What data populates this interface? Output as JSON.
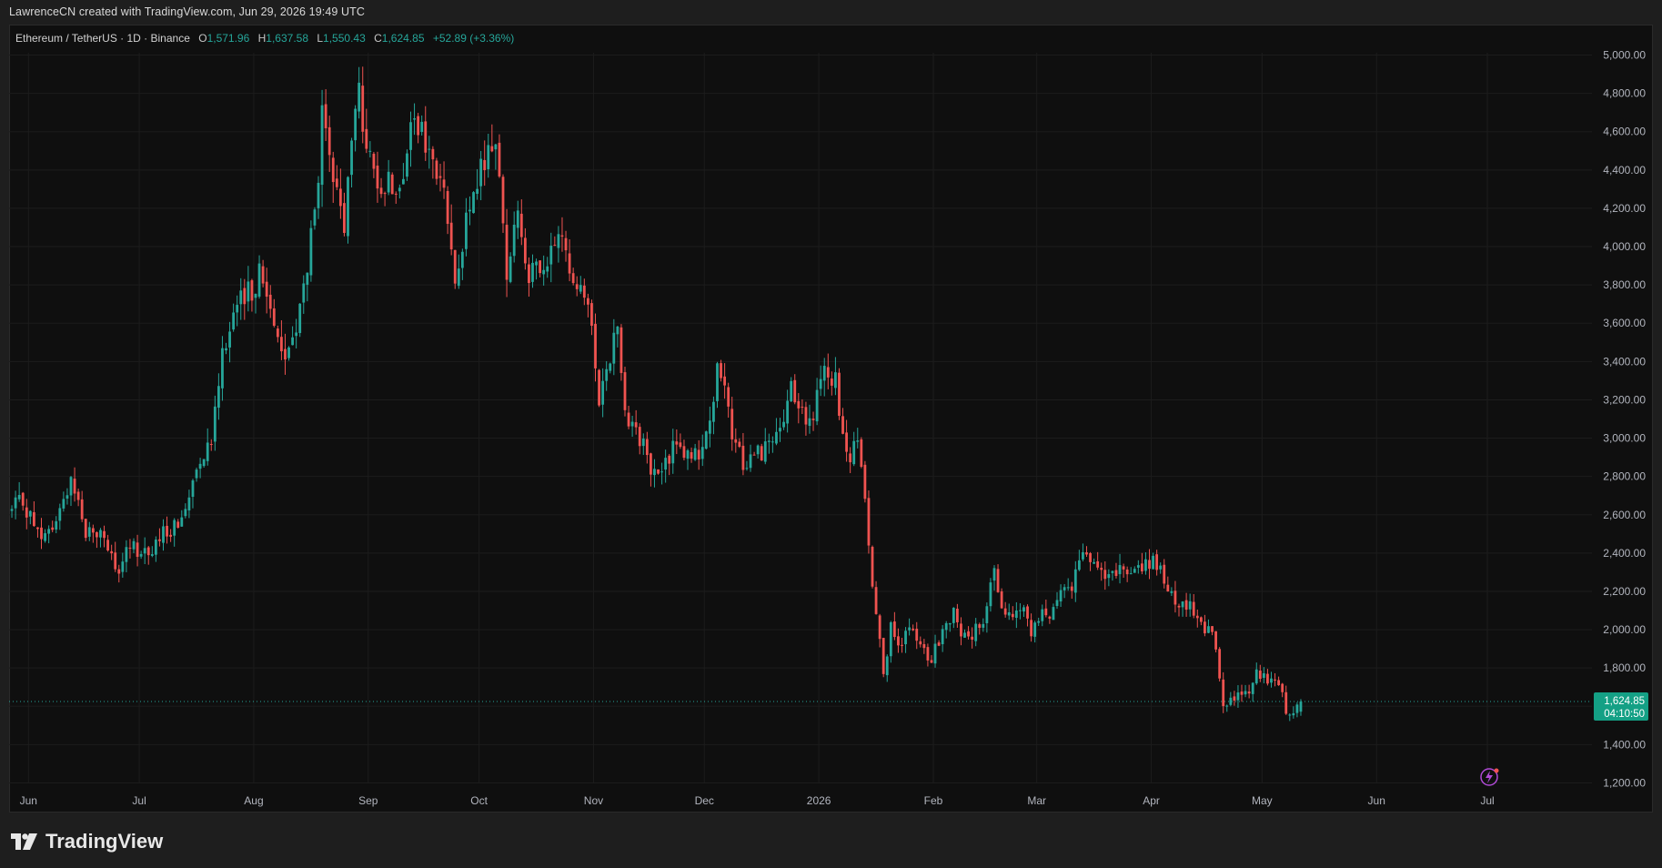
{
  "attribution": "LawrenceCN created with TradingView.com, Jun 29, 2026 19:49 UTC",
  "legend": {
    "symbol": "Ethereum / TetherUS · 1D · Binance",
    "open_label": "O",
    "open": "1,571.96",
    "high_label": "H",
    "high": "1,637.58",
    "low_label": "L",
    "low": "1,550.43",
    "close_label": "C",
    "close": "1,624.85",
    "change": "+52.89 (+3.36%)"
  },
  "price_tag": {
    "price": "1,624.85",
    "countdown": "04:10:50"
  },
  "logo_text": "TradingView",
  "colors": {
    "up": "#26a69a",
    "down": "#ef5350",
    "background": "#0f0f0f",
    "grid": "#1c1c1c",
    "axis_text": "#b2b5be",
    "tag": "#14a085"
  },
  "chart_data": {
    "type": "candlestick",
    "title": "Ethereum / TetherUS · 1D · Binance",
    "ylim": [
      1100,
      5100
    ],
    "y_ticks": [
      1200,
      1400,
      1600,
      1800,
      2000,
      2200,
      2400,
      2600,
      2800,
      3000,
      3200,
      3400,
      3600,
      3800,
      4000,
      4200,
      4400,
      4600,
      4800,
      5000
    ],
    "y_tick_labels": [
      "1,200.00",
      "1,400.00",
      "1,600.00",
      "1,800.00",
      "2,000.00",
      "2,200.00",
      "2,400.00",
      "2,600.00",
      "2,800.00",
      "3,000.00",
      "3,200.00",
      "3,400.00",
      "3,600.00",
      "3,800.00",
      "4,000.00",
      "4,200.00",
      "4,400.00",
      "4,600.00",
      "4,800.00",
      "5,000.00"
    ],
    "x_tick_labels": [
      "Jun",
      "Jul",
      "Aug",
      "Sep",
      "Oct",
      "Nov",
      "Dec",
      "2026",
      "Feb",
      "Mar",
      "Apr",
      "May",
      "Jun",
      "Jul"
    ],
    "x_tick_days": [
      5,
      35,
      66,
      97,
      127,
      158,
      188,
      219,
      250,
      278,
      309,
      339,
      370,
      400
    ],
    "total_days": 405,
    "last_price": 1624.85,
    "grid": true,
    "anchors": [
      [
        0,
        2620
      ],
      [
        3,
        2680
      ],
      [
        8,
        2450
      ],
      [
        13,
        2600
      ],
      [
        16,
        2820
      ],
      [
        20,
        2510
      ],
      [
        25,
        2500
      ],
      [
        28,
        2280
      ],
      [
        32,
        2430
      ],
      [
        38,
        2410
      ],
      [
        42,
        2520
      ],
      [
        46,
        2560
      ],
      [
        50,
        2880
      ],
      [
        54,
        3010
      ],
      [
        57,
        3470
      ],
      [
        60,
        3650
      ],
      [
        64,
        3750
      ],
      [
        67,
        3860
      ],
      [
        71,
        3640
      ],
      [
        74,
        3400
      ],
      [
        78,
        3660
      ],
      [
        82,
        4150
      ],
      [
        84,
        4650
      ],
      [
        86,
        4420
      ],
      [
        88,
        4250
      ],
      [
        90,
        4120
      ],
      [
        92,
        4520
      ],
      [
        94,
        4880
      ],
      [
        96,
        4450
      ],
      [
        99,
        4360
      ],
      [
        103,
        4320
      ],
      [
        106,
        4420
      ],
      [
        109,
        4650
      ],
      [
        113,
        4480
      ],
      [
        117,
        4260
      ],
      [
        120,
        3880
      ],
      [
        123,
        4100
      ],
      [
        126,
        4320
      ],
      [
        129,
        4520
      ],
      [
        131,
        4550
      ],
      [
        134,
        3880
      ],
      [
        137,
        4180
      ],
      [
        140,
        3860
      ],
      [
        145,
        3850
      ],
      [
        148,
        4120
      ],
      [
        151,
        3840
      ],
      [
        154,
        3850
      ],
      [
        156,
        3670
      ],
      [
        159,
        3230
      ],
      [
        162,
        3450
      ],
      [
        164,
        3580
      ],
      [
        166,
        3160
      ],
      [
        170,
        3000
      ],
      [
        174,
        2800
      ],
      [
        177,
        2850
      ],
      [
        180,
        3000
      ],
      [
        184,
        2870
      ],
      [
        188,
        3000
      ],
      [
        191,
        3340
      ],
      [
        193,
        3220
      ],
      [
        195,
        3010
      ],
      [
        198,
        2870
      ],
      [
        201,
        2920
      ],
      [
        205,
        2960
      ],
      [
        208,
        3000
      ],
      [
        211,
        3270
      ],
      [
        213,
        3120
      ],
      [
        217,
        3090
      ],
      [
        220,
        3390
      ],
      [
        223,
        3280
      ],
      [
        225,
        2980
      ],
      [
        227,
        2880
      ],
      [
        229,
        3000
      ],
      [
        231,
        2680
      ],
      [
        233,
        2230
      ],
      [
        235,
        1990
      ],
      [
        236,
        1790
      ],
      [
        238,
        2000
      ],
      [
        240,
        1920
      ],
      [
        243,
        2000
      ],
      [
        246,
        1910
      ],
      [
        249,
        1830
      ],
      [
        252,
        2010
      ],
      [
        255,
        2080
      ],
      [
        258,
        1950
      ],
      [
        261,
        2000
      ],
      [
        264,
        2100
      ],
      [
        266,
        2350
      ],
      [
        268,
        2110
      ],
      [
        271,
        2090
      ],
      [
        274,
        2120
      ],
      [
        276,
        1980
      ],
      [
        278,
        2060
      ],
      [
        281,
        2090
      ],
      [
        284,
        2230
      ],
      [
        287,
        2210
      ],
      [
        289,
        2380
      ],
      [
        292,
        2330
      ],
      [
        296,
        2310
      ],
      [
        299,
        2320
      ],
      [
        302,
        2270
      ],
      [
        306,
        2330
      ],
      [
        309,
        2340
      ],
      [
        312,
        2270
      ],
      [
        315,
        2130
      ],
      [
        318,
        2120
      ],
      [
        320,
        2100
      ],
      [
        323,
        2010
      ],
      [
        325,
        2000
      ],
      [
        327,
        1740
      ],
      [
        328,
        1580
      ],
      [
        329,
        1600
      ],
      [
        331,
        1660
      ],
      [
        335,
        1650
      ],
      [
        337,
        1800
      ],
      [
        340,
        1730
      ],
      [
        343,
        1710
      ],
      [
        345,
        1590
      ],
      [
        347,
        1545
      ],
      [
        349,
        1625
      ]
    ]
  }
}
